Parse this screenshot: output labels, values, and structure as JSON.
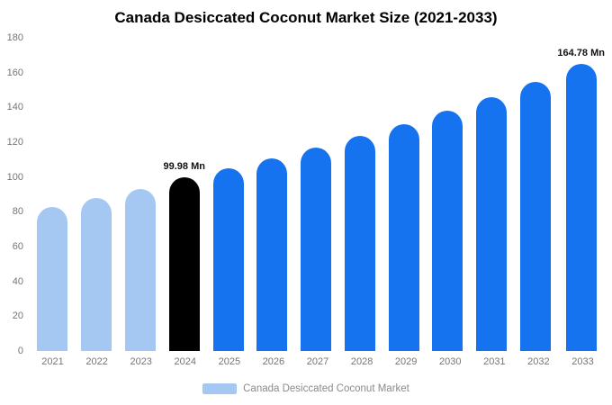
{
  "title": "Canada Desiccated Coconut Market Size (2021-2033)",
  "legend": {
    "label": "Canada Desiccated Coconut Market",
    "swatch_color": "#a5c8f2"
  },
  "colors": {
    "historical": "#a5c8f2",
    "highlight": "#000000",
    "forecast": "#1673f0",
    "axis_text": "#757575"
  },
  "chart_data": {
    "type": "bar",
    "title": "Canada Desiccated Coconut Market Size (2021-2033)",
    "xlabel": "",
    "ylabel": "",
    "ylim": [
      0,
      180
    ],
    "yticks": [
      0,
      20,
      40,
      60,
      80,
      100,
      120,
      140,
      160,
      180
    ],
    "grid": false,
    "legend_position": "bottom",
    "categories": [
      "2021",
      "2022",
      "2023",
      "2024",
      "2025",
      "2026",
      "2027",
      "2028",
      "2029",
      "2030",
      "2031",
      "2032",
      "2033"
    ],
    "values": [
      83,
      88,
      93,
      99.98,
      105,
      110.5,
      117,
      123.5,
      130.5,
      138,
      146,
      154.8,
      164.78
    ],
    "unit": "Mn",
    "bar_colors": [
      "#a5c8f2",
      "#a5c8f2",
      "#a5c8f2",
      "#000000",
      "#1673f0",
      "#1673f0",
      "#1673f0",
      "#1673f0",
      "#1673f0",
      "#1673f0",
      "#1673f0",
      "#1673f0",
      "#1673f0"
    ],
    "annotations": [
      {
        "index": 3,
        "text": "99.98 Mn"
      },
      {
        "index": 12,
        "text": "164.78 Mn"
      }
    ]
  }
}
